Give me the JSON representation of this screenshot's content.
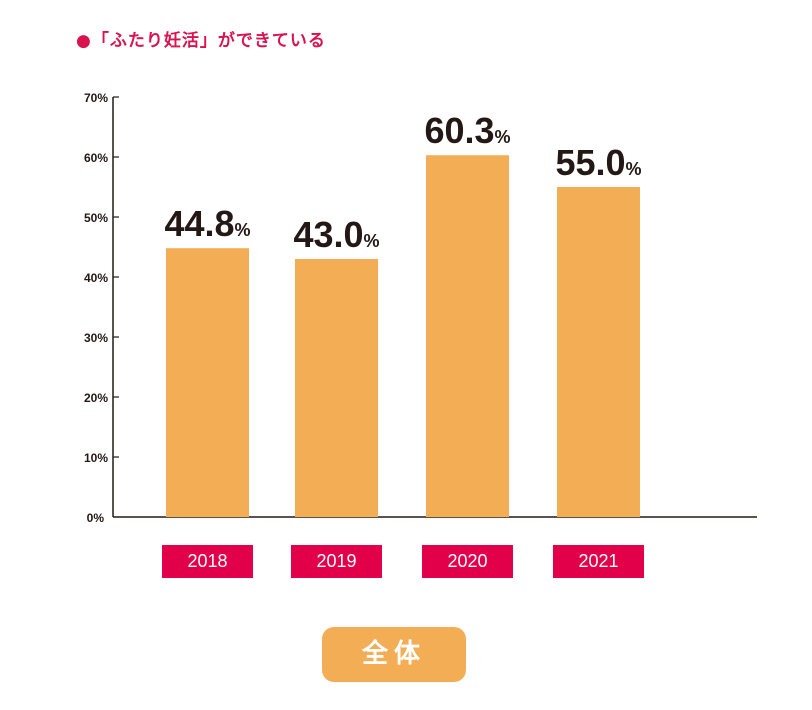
{
  "chart_data": {
    "type": "bar",
    "title": "●「ふたり妊活」ができている",
    "categories": [
      "2018",
      "2019",
      "2020",
      "2021"
    ],
    "values": [
      44.8,
      43.0,
      60.3,
      55.0
    ],
    "value_labels": [
      "44.8",
      "43.0",
      "60.3",
      "55.0"
    ],
    "value_unit": "%",
    "ylim": [
      0,
      70
    ],
    "yticks": [
      "0%",
      "10%",
      "20%",
      "30%",
      "40%",
      "50%",
      "60%",
      "70%"
    ],
    "grid": false,
    "bar_color": "#f3ae55",
    "category_label_color": "#e2004b",
    "group_label": "全体"
  }
}
